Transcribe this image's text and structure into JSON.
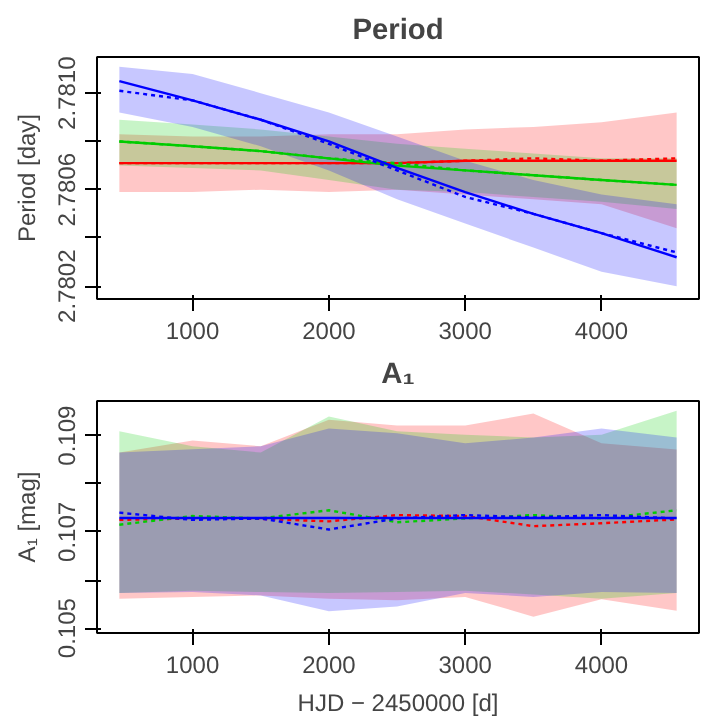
{
  "chart_data": [
    {
      "type": "line",
      "title": "Period",
      "ylabel": "Period [day]",
      "xlim": [
        299,
        4715
      ],
      "ylim": [
        2.780147,
        2.78115
      ],
      "xticks": [
        1000,
        2000,
        3000,
        4000
      ],
      "yticks": [
        2.7802,
        {
          "value": 2.7804,
          "label": null
        },
        2.7806,
        {
          "value": 2.7808,
          "label": null
        },
        {
          "value": 2.781,
          "label": "2.7810"
        }
      ],
      "grid": false,
      "x": [
        463,
        1000,
        1500,
        2000,
        2500,
        3000,
        3500,
        4000,
        4551
      ],
      "series": [
        {
          "color": "#ff0000",
          "line_style": "solid",
          "values": [
            2.78071,
            2.78071,
            2.78071,
            2.78071,
            2.78071,
            2.78072,
            2.78072,
            2.78072,
            2.78072
          ],
          "lower": [
            2.78059,
            2.78059,
            2.7806,
            2.78059,
            2.7806,
            2.78058,
            2.78056,
            2.78054,
            2.78044
          ],
          "upper": [
            2.78083,
            2.78082,
            2.78082,
            2.78083,
            2.78083,
            2.78085,
            2.78086,
            2.78088,
            2.78092
          ]
        },
        {
          "color": "#ff0000",
          "line_style": "dotted",
          "values": [
            2.78071,
            2.78071,
            2.78071,
            2.78071,
            2.78071,
            2.78072,
            2.78073,
            2.78072,
            2.78073
          ]
        },
        {
          "color": "#00cc00",
          "line_style": "solid",
          "values": [
            2.7808,
            2.78078,
            2.78076,
            2.78073,
            2.7807,
            2.78068,
            2.78066,
            2.78064,
            2.78062
          ],
          "lower": [
            2.7807,
            2.78069,
            2.78068,
            2.78064,
            2.7806,
            2.78059,
            2.78057,
            2.78055,
            2.78052
          ],
          "upper": [
            2.78089,
            2.78087,
            2.78085,
            2.78082,
            2.78079,
            2.78077,
            2.78075,
            2.78073,
            2.78073
          ]
        },
        {
          "color": "#00cc00",
          "line_style": "dotted",
          "values": [
            2.7808,
            2.78078,
            2.78076,
            2.78073,
            2.78071,
            2.78068,
            2.78066,
            2.78064,
            2.78062
          ]
        },
        {
          "color": "#0000ff",
          "line_style": "solid",
          "values": [
            2.78105,
            2.78097,
            2.78089,
            2.7808,
            2.78069,
            2.78059,
            2.7805,
            2.78042,
            2.78032
          ],
          "lower": [
            2.78092,
            2.78086,
            2.78078,
            2.78068,
            2.78056,
            2.78046,
            2.78036,
            2.78026,
            2.7802
          ],
          "upper": [
            2.78111,
            2.78108,
            2.781,
            2.78092,
            2.78082,
            2.78072,
            2.78064,
            2.78058,
            2.78054
          ]
        },
        {
          "color": "#0000ff",
          "line_style": "dotted",
          "values": [
            2.78101,
            2.78097,
            2.78089,
            2.78079,
            2.78068,
            2.78057,
            2.7805,
            2.78042,
            2.78034
          ]
        }
      ]
    },
    {
      "type": "line",
      "title": "A₁",
      "xlabel": "HJD − 2450000 [d]",
      "ylabel": "A₁ [mag]",
      "xlim": [
        299,
        4715
      ],
      "ylim": [
        0.1049,
        0.10972
      ],
      "xticks": [
        1000,
        2000,
        3000,
        4000
      ],
      "yticks": [
        0.105,
        {
          "value": 0.106,
          "label": null
        },
        0.107,
        {
          "value": 0.108,
          "label": null
        },
        0.109
      ],
      "grid": false,
      "x": [
        463,
        1000,
        1500,
        2000,
        2500,
        3000,
        3500,
        4000,
        4551
      ],
      "series": [
        {
          "color": "#ff0000",
          "line_style": "dotted",
          "values": [
            0.10725,
            0.10728,
            0.10727,
            0.10722,
            0.10735,
            0.10733,
            0.10712,
            0.10718,
            0.10726
          ],
          "lower": [
            0.10561,
            0.10565,
            0.10568,
            0.10561,
            0.10558,
            0.10565,
            0.10524,
            0.1056,
            0.10536
          ],
          "upper": [
            0.10865,
            0.1089,
            0.10878,
            0.10933,
            0.10921,
            0.10921,
            0.10946,
            0.10884,
            0.10871
          ]
        },
        {
          "color": "#00cc00",
          "line_style": "dotted",
          "values": [
            0.10715,
            0.10733,
            0.10728,
            0.10745,
            0.1072,
            0.10728,
            0.10735,
            0.10728,
            0.10745
          ],
          "lower": [
            0.10573,
            0.10578,
            0.10575,
            0.10573,
            0.10575,
            0.10578,
            0.1057,
            0.10561,
            0.10573
          ],
          "upper": [
            0.10909,
            0.10878,
            0.10865,
            0.1094,
            0.10909,
            0.10902,
            0.10896,
            0.10902,
            0.10952
          ]
        },
        {
          "color": "#0000ff",
          "line_style": "dotted",
          "values": [
            0.1074,
            0.10725,
            0.10728,
            0.10705,
            0.10728,
            0.10735,
            0.1073,
            0.10735,
            0.10728
          ],
          "lower": [
            0.10573,
            0.10575,
            0.10568,
            0.10535,
            0.10545,
            0.10573,
            0.10565,
            0.10575,
            0.10573
          ],
          "upper": [
            0.10865,
            0.10872,
            0.10878,
            0.10915,
            0.10905,
            0.10884,
            0.10896,
            0.10915,
            0.10896
          ]
        },
        {
          "color": "#0000ff",
          "line_style": "solid",
          "values": [
            0.10729,
            0.10729,
            0.10729,
            0.10729,
            0.10729,
            0.10729,
            0.10729,
            0.10729,
            0.10729
          ]
        }
      ]
    }
  ]
}
